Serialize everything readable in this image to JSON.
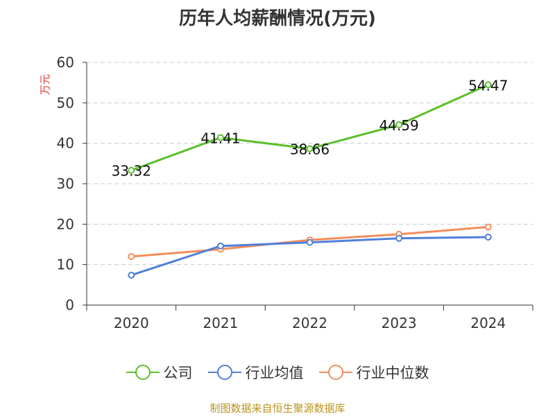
{
  "chart_data": {
    "type": "line",
    "title": "历年人均薪酬情况(万元)",
    "xlabel": "",
    "ylabel": "万元",
    "categories": [
      "2020",
      "2021",
      "2022",
      "2023",
      "2024"
    ],
    "ylim": [
      0,
      60
    ],
    "yticks": [
      "0",
      "10",
      "20",
      "30",
      "40",
      "50",
      "60"
    ],
    "grid": true,
    "legend_position": "bottom",
    "series": [
      {
        "name": "公司",
        "color": "#5bbf2a",
        "values": [
          33.32,
          41.41,
          38.66,
          44.59,
          54.47
        ],
        "labels": [
          "33.32",
          "41.41",
          "38.66",
          "44.59",
          "54.47"
        ]
      },
      {
        "name": "行业均值",
        "color": "#4f7fd9",
        "values": [
          7.4,
          14.6,
          15.5,
          16.5,
          16.8
        ]
      },
      {
        "name": "行业中位数",
        "color": "#f28d5a",
        "values": [
          12.0,
          13.8,
          16.1,
          17.5,
          19.3
        ]
      }
    ]
  },
  "source": "制图数据来自恒生聚源数据库"
}
